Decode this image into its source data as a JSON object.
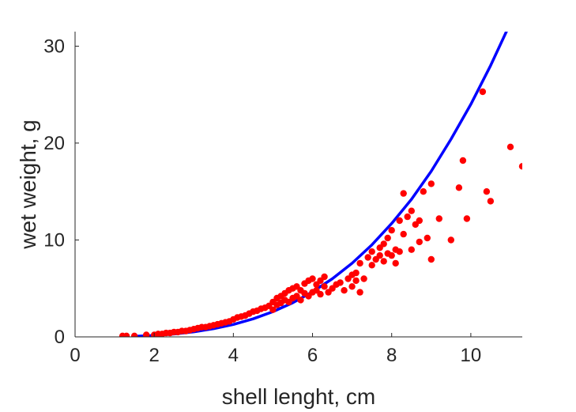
{
  "chart_data": {
    "type": "scatter",
    "xlabel": "shell lenght, cm",
    "ylabel": "wet weight, g",
    "xlim": [
      0,
      11.3
    ],
    "ylim": [
      0,
      31.5
    ],
    "xticks": [
      0,
      2,
      4,
      6,
      8,
      10
    ],
    "yticks": [
      0,
      10,
      20,
      30
    ],
    "xtick_labels": [
      "0",
      "2",
      "4",
      "6",
      "8",
      "10"
    ],
    "ytick_labels": [
      "0",
      "10",
      "20",
      "30"
    ],
    "grid": false,
    "legend": "none",
    "colors": {
      "points": "#ff0000",
      "fit": "#0000ff",
      "axis": "#262626"
    },
    "series": [
      {
        "kind": "scatter",
        "x": [
          1.2,
          1.3,
          1.5,
          1.8,
          2.0,
          2.1,
          2.2,
          2.3,
          2.4,
          2.5,
          2.6,
          2.7,
          2.8,
          2.9,
          3.0,
          3.1,
          3.2,
          3.3,
          3.4,
          3.5,
          3.6,
          3.7,
          3.8,
          3.9,
          4.0,
          4.1,
          4.2,
          4.3,
          4.4,
          4.5,
          4.6,
          4.7,
          4.8,
          4.9,
          5.0,
          5.0,
          5.1,
          5.1,
          5.2,
          5.2,
          5.3,
          5.3,
          5.4,
          5.4,
          5.5,
          5.5,
          5.6,
          5.6,
          5.7,
          5.7,
          5.8,
          5.8,
          5.9,
          5.9,
          6.0,
          6.0,
          6.1,
          6.1,
          6.2,
          6.2,
          6.3,
          6.3,
          6.4,
          6.5,
          6.6,
          6.7,
          6.8,
          6.9,
          7.0,
          7.0,
          7.1,
          7.1,
          7.2,
          7.2,
          7.3,
          7.4,
          7.5,
          7.5,
          7.6,
          7.7,
          7.7,
          7.8,
          7.8,
          7.9,
          7.9,
          8.0,
          8.0,
          8.1,
          8.1,
          8.2,
          8.2,
          8.3,
          8.3,
          8.4,
          8.5,
          8.5,
          8.6,
          8.7,
          8.7,
          8.8,
          8.9,
          9.0,
          9.0,
          9.2,
          9.5,
          9.7,
          9.8,
          9.9,
          10.3,
          10.4,
          10.5,
          11.0,
          11.3
        ],
        "y": [
          0.1,
          0.1,
          0.1,
          0.2,
          0.2,
          0.3,
          0.3,
          0.4,
          0.4,
          0.5,
          0.5,
          0.6,
          0.6,
          0.7,
          0.8,
          0.9,
          1.0,
          1.0,
          1.1,
          1.2,
          1.3,
          1.4,
          1.5,
          1.6,
          1.8,
          2.0,
          2.1,
          2.2,
          2.4,
          2.6,
          2.7,
          2.9,
          3.0,
          3.2,
          2.8,
          3.6,
          3.3,
          4.0,
          3.5,
          4.2,
          3.8,
          4.5,
          3.6,
          4.8,
          4.0,
          5.0,
          4.2,
          5.2,
          3.8,
          4.8,
          4.5,
          5.5,
          4.2,
          5.8,
          4.6,
          6.0,
          4.8,
          5.4,
          4.4,
          5.8,
          5.2,
          6.2,
          4.6,
          5.0,
          5.4,
          5.6,
          4.8,
          6.0,
          5.2,
          6.4,
          5.8,
          6.6,
          4.6,
          7.6,
          6.0,
          8.2,
          7.4,
          8.8,
          8.0,
          9.2,
          8.4,
          9.6,
          7.8,
          10.2,
          8.6,
          11.0,
          8.4,
          9.0,
          7.6,
          12.0,
          8.8,
          14.8,
          10.6,
          12.4,
          9.0,
          13.0,
          11.6,
          12.0,
          9.8,
          15.0,
          10.2,
          8.0,
          15.8,
          12.2,
          10.0,
          15.4,
          18.2,
          12.2,
          25.3,
          15.0,
          14.0,
          19.6,
          17.6
        ]
      },
      {
        "kind": "line",
        "x": [
          1.5,
          2.0,
          2.5,
          3.0,
          3.5,
          4.0,
          4.5,
          5.0,
          5.5,
          6.0,
          6.5,
          7.0,
          7.5,
          8.0,
          8.5,
          9.0,
          9.5,
          10.0,
          10.5,
          11.0,
          11.35
        ],
        "y": [
          0.06,
          0.15,
          0.29,
          0.52,
          0.84,
          1.28,
          1.86,
          2.6,
          3.52,
          4.65,
          6.0,
          7.6,
          9.5,
          11.7,
          14.2,
          17.1,
          20.4,
          24.0,
          28.0,
          32.4,
          35.8
        ]
      }
    ]
  }
}
